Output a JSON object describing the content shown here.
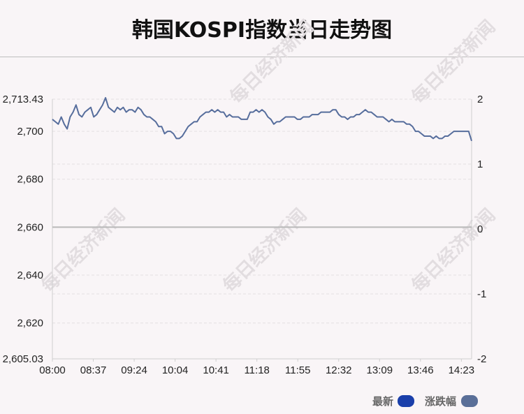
{
  "chart_data": {
    "type": "line",
    "title": "韩国KOSPI指数当日走势图",
    "xlabel": "",
    "ylabel": "",
    "x_ticks": [
      "08:00",
      "08:37",
      "09:24",
      "10:04",
      "10:41",
      "11:18",
      "11:55",
      "12:32",
      "13:09",
      "13:46",
      "14:23"
    ],
    "y_left_ticks": [
      "2,713.43",
      "2,700",
      "2,680",
      "2,660",
      "2,640",
      "2,620",
      "2,605.03"
    ],
    "y_left_range": [
      2605.03,
      2713.43
    ],
    "y_right_ticks": [
      "2",
      "1",
      "0",
      "-1",
      "-2"
    ],
    "y_right_range": [
      -2,
      2
    ],
    "reference_value": 2660,
    "legend": {
      "placement": "bottom-right",
      "items": [
        {
          "label": "最新",
          "color": "#1a3faa"
        },
        {
          "label": "涨跌幅",
          "color": "#5a6f98"
        }
      ]
    },
    "watermark": "每日经济新闻",
    "line_color": "#566d9c",
    "series": [
      {
        "values": [
          2705,
          2704,
          2703,
          2706,
          2703,
          2701,
          2706,
          2708,
          2711,
          2707,
          2706,
          2708,
          2709,
          2710,
          2706,
          2707,
          2709,
          2711,
          2714,
          2710,
          2709,
          2708,
          2710,
          2709,
          2710,
          2708,
          2709,
          2709,
          2708,
          2710,
          2709,
          2707,
          2706,
          2706,
          2705,
          2704,
          2702,
          2702,
          2699,
          2700,
          2700,
          2699,
          2697,
          2697,
          2698,
          2700,
          2702,
          2703,
          2704,
          2704,
          2706,
          2707,
          2708,
          2708,
          2709,
          2708,
          2709,
          2708,
          2708,
          2706,
          2707,
          2706,
          2706,
          2706,
          2705,
          2705,
          2705,
          2708,
          2708,
          2709,
          2708,
          2709,
          2708,
          2706,
          2705,
          2703,
          2704,
          2704,
          2705,
          2706,
          2706,
          2706,
          2706,
          2705,
          2705,
          2706,
          2706,
          2706,
          2707,
          2707,
          2707,
          2708,
          2708,
          2708,
          2708,
          2709,
          2709,
          2707,
          2706,
          2706,
          2705,
          2706,
          2706,
          2707,
          2707,
          2708,
          2709,
          2708,
          2708,
          2707,
          2706,
          2706,
          2706,
          2705,
          2704,
          2705,
          2704,
          2704,
          2704,
          2704,
          2703,
          2703,
          2702,
          2700,
          2700,
          2699,
          2698,
          2698,
          2698,
          2697,
          2698,
          2697,
          2697,
          2698,
          2698,
          2699,
          2700,
          2700,
          2700,
          2700,
          2700,
          2700,
          2696
        ]
      }
    ]
  }
}
